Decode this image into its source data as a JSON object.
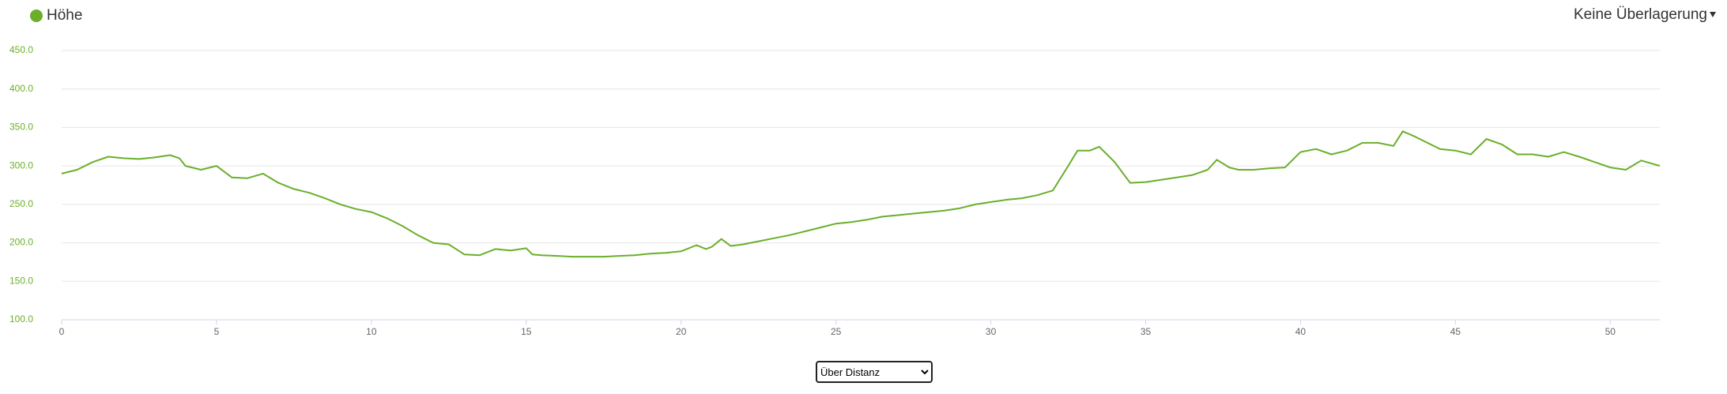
{
  "chart_data": {
    "type": "line",
    "x": [
      0,
      0.5,
      1,
      1.5,
      2,
      2.5,
      3,
      3.5,
      3.8,
      4,
      4.5,
      5,
      5.5,
      6,
      6.5,
      7,
      7.5,
      8,
      8.5,
      9,
      9.5,
      10,
      10.5,
      11,
      11.5,
      12,
      12.5,
      13,
      13.5,
      14,
      14.5,
      15,
      15.2,
      15.5,
      16,
      16.5,
      17,
      17.5,
      18,
      18.5,
      19,
      19.5,
      20,
      20.5,
      20.8,
      21,
      21.3,
      21.6,
      22,
      22.5,
      23,
      23.5,
      24,
      24.5,
      25,
      25.5,
      26,
      26.5,
      27,
      27.5,
      28,
      28.5,
      29,
      29.5,
      30,
      30.5,
      31,
      31.5,
      32,
      32.5,
      32.8,
      33.2,
      33.5,
      34,
      34.5,
      35,
      35.5,
      36,
      36.5,
      37,
      37.3,
      37.7,
      38,
      38.5,
      39,
      39.5,
      40,
      40.5,
      41,
      41.5,
      42,
      42.5,
      43,
      43.3,
      43.7,
      44,
      44.5,
      45,
      45.5,
      46,
      46.5,
      47,
      47.5,
      48,
      48.5,
      49,
      49.5,
      50,
      50.5,
      51,
      51.6
    ],
    "series": [
      {
        "name": "Höhe",
        "color": "#6aaf2a",
        "values": [
          290,
          295,
          305,
          312,
          310,
          309,
          311,
          314,
          310,
          300,
          295,
          300,
          285,
          284,
          290,
          278,
          270,
          265,
          258,
          250,
          244,
          240,
          232,
          222,
          210,
          200,
          198,
          185,
          184,
          192,
          190,
          193,
          185,
          184,
          183,
          182,
          182,
          182,
          183,
          184,
          186,
          187,
          189,
          197,
          192,
          195,
          205,
          196,
          198,
          202,
          206,
          210,
          215,
          220,
          225,
          227,
          230,
          234,
          236,
          238,
          240,
          242,
          245,
          250,
          253,
          256,
          258,
          262,
          268,
          300,
          320,
          320,
          325,
          305,
          278,
          279,
          282,
          285,
          288,
          295,
          308,
          298,
          295,
          295,
          297,
          298,
          318,
          322,
          315,
          320,
          330,
          330,
          326,
          345,
          338,
          332,
          322,
          320,
          315,
          335,
          328,
          315,
          315,
          312,
          318,
          312,
          305,
          298,
          295,
          307,
          300
        ]
      }
    ],
    "xlim": [
      0,
      51.6
    ],
    "ylim": [
      100,
      450
    ],
    "xticks": [
      0,
      5,
      10,
      15,
      20,
      25,
      30,
      35,
      40,
      45,
      50
    ],
    "yticks": [
      {
        "value": 100,
        "label": "100.0"
      },
      {
        "value": 150,
        "label": "150.0"
      },
      {
        "value": 200,
        "label": "200.0"
      },
      {
        "value": 250,
        "label": "250.0"
      },
      {
        "value": 300,
        "label": "300.0"
      },
      {
        "value": 350,
        "label": "350.0"
      },
      {
        "value": 400,
        "label": "400.0"
      },
      {
        "value": 450,
        "label": "450.0"
      }
    ],
    "grid": true
  },
  "overlay_menu": {
    "label": "Keine Überlagerung"
  },
  "x_axis_select": {
    "selected": "Über Distanz"
  }
}
